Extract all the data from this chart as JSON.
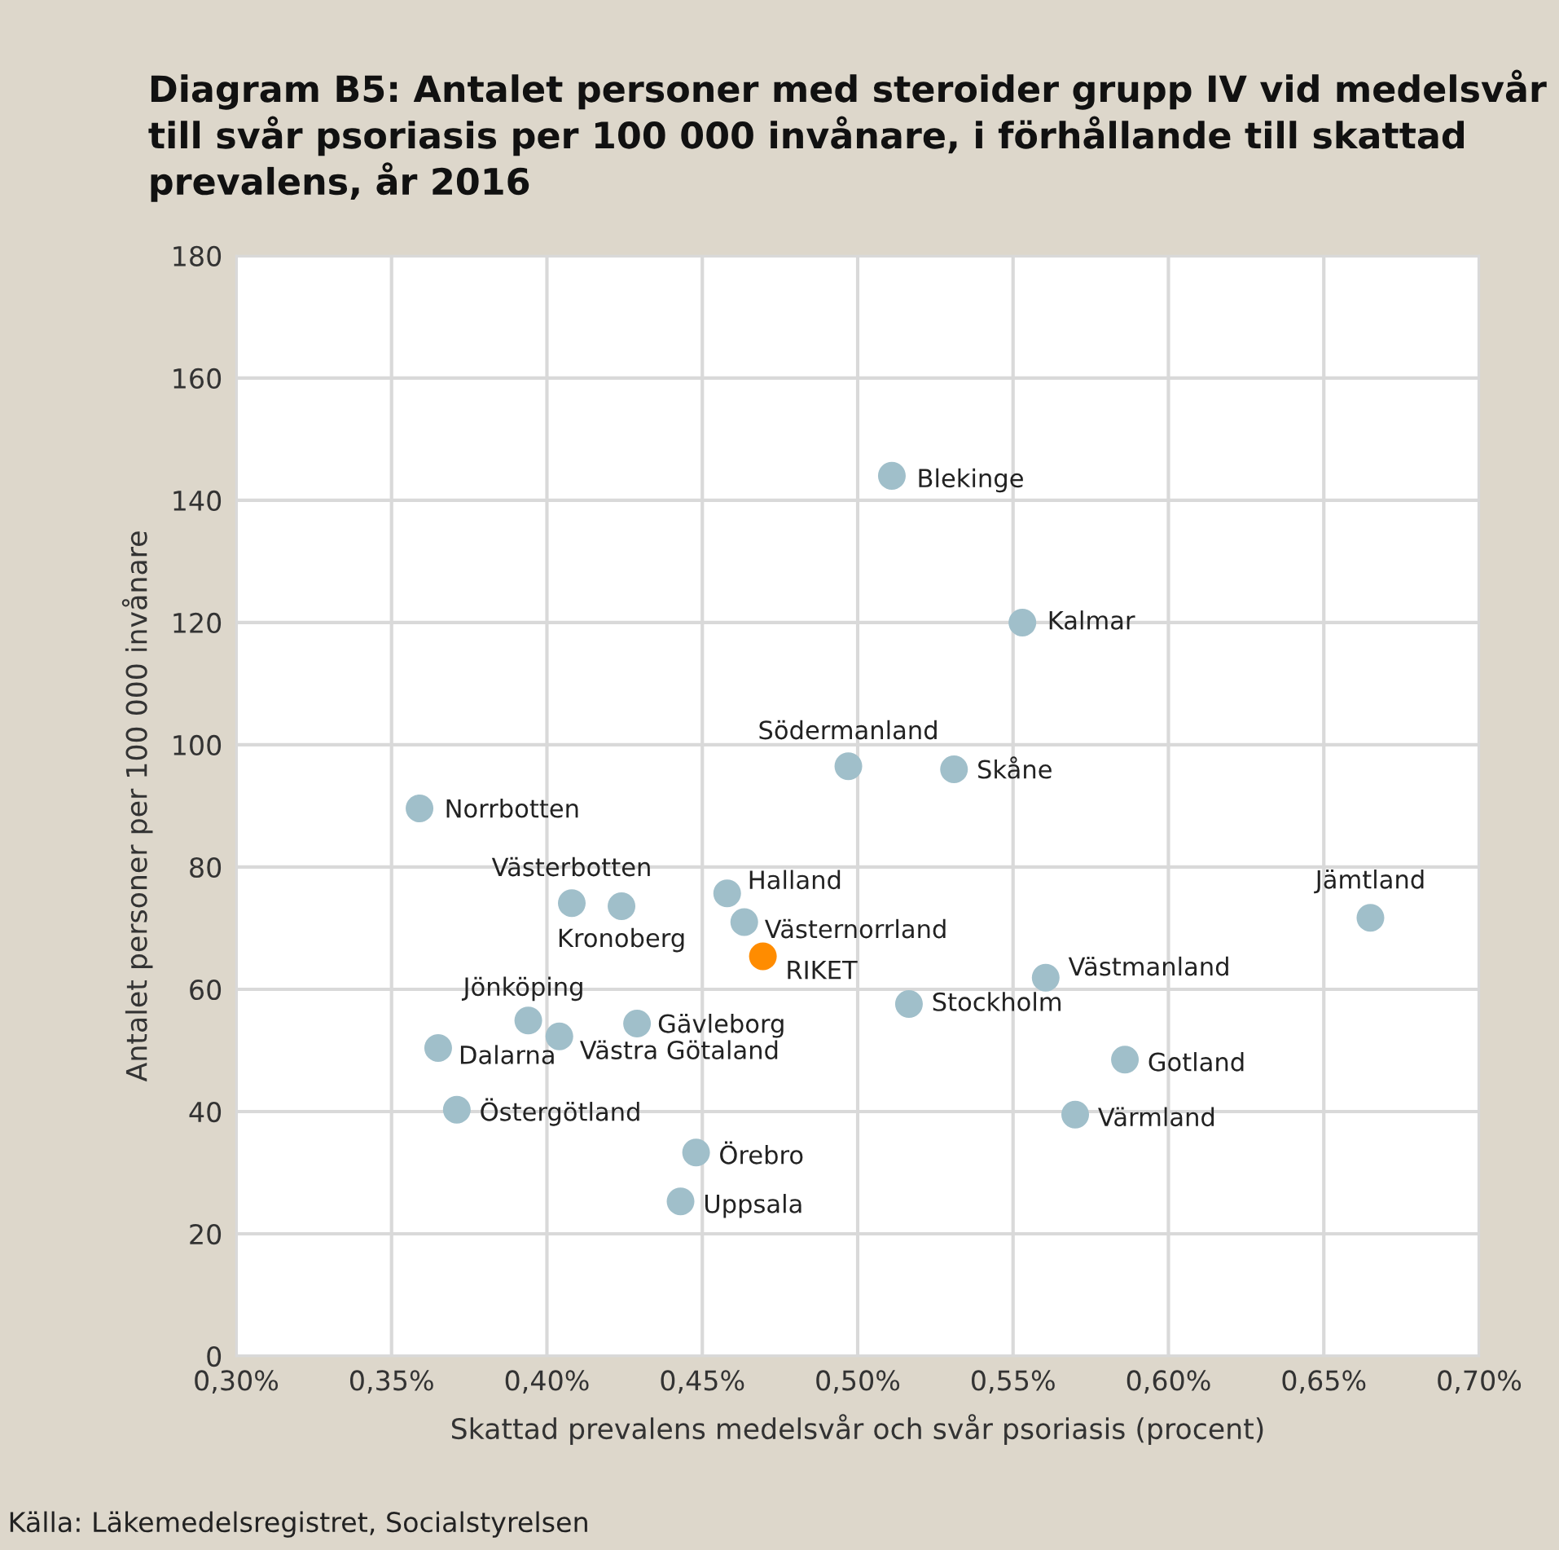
{
  "chart_data": {
    "type": "scatter",
    "title": "Diagram B5: Antalet personer med steroider grupp IV vid medelsvår till svår psoriasis per 100 000 invånare, i förhållande till skattad prevalens, år 2016",
    "xlabel": "Skattad prevalens medelsvår och svår psoriasis (procent)",
    "ylabel": "Antalet personer per 100 000 invånare",
    "annotations": [
      "Källa: Läkemedelsregistret, Socialstyrelsen"
    ],
    "xlim": [
      0.3,
      0.7
    ],
    "xticks": [
      {
        "value": 0.3,
        "label": "0,30%"
      },
      {
        "value": 0.35,
        "label": "0,35%"
      },
      {
        "value": 0.4,
        "label": "0,40%"
      },
      {
        "value": 0.45,
        "label": "0,45%"
      },
      {
        "value": 0.5,
        "label": "0,50%"
      },
      {
        "value": 0.55,
        "label": "0,55%"
      },
      {
        "value": 0.6,
        "label": "0,60%"
      },
      {
        "value": 0.65,
        "label": "0,65%"
      },
      {
        "value": 0.7,
        "label": "0,70%"
      }
    ],
    "ylim": [
      0,
      180
    ],
    "yticks": [
      0,
      20,
      40,
      60,
      80,
      100,
      120,
      140,
      160,
      180
    ],
    "grid": true,
    "marker": "circle",
    "legend": false,
    "series": [
      {
        "name": "Blekinge",
        "color": "#a0bfca",
        "x": [
          0.511
        ],
        "values": [
          144
        ]
      },
      {
        "name": "Kalmar",
        "color": "#a0bfca",
        "x": [
          0.553
        ],
        "values": [
          120
        ]
      },
      {
        "name": "Södermanland",
        "color": "#a0bfca",
        "x": [
          0.497
        ],
        "values": [
          96.5
        ]
      },
      {
        "name": "Skåne",
        "color": "#a0bfca",
        "x": [
          0.531
        ],
        "values": [
          96
        ]
      },
      {
        "name": "Norrbotten",
        "color": "#a0bfca",
        "x": [
          0.359
        ],
        "values": [
          89.6
        ]
      },
      {
        "name": "Västerbotten",
        "color": "#a0bfca",
        "x": [
          0.408
        ],
        "values": [
          74.1
        ]
      },
      {
        "name": "Kronoberg",
        "color": "#a0bfca",
        "x": [
          0.424
        ],
        "values": [
          73.6
        ]
      },
      {
        "name": "Halland",
        "color": "#a0bfca",
        "x": [
          0.458
        ],
        "values": [
          75.7
        ]
      },
      {
        "name": "Västernorrland",
        "color": "#a0bfca",
        "x": [
          0.4635
        ],
        "values": [
          71
        ]
      },
      {
        "name": "Jämtland",
        "color": "#a0bfca",
        "x": [
          0.665
        ],
        "values": [
          71.7
        ]
      },
      {
        "name": "RIKET",
        "color": "#ff8c00",
        "x": [
          0.4695
        ],
        "values": [
          65.4
        ]
      },
      {
        "name": "Västmanland",
        "color": "#a0bfca",
        "x": [
          0.5605
        ],
        "values": [
          61.9
        ]
      },
      {
        "name": "Stockholm",
        "color": "#a0bfca",
        "x": [
          0.5165
        ],
        "values": [
          57.6
        ]
      },
      {
        "name": "Jönköping",
        "color": "#a0bfca",
        "x": [
          0.394
        ],
        "values": [
          54.9
        ]
      },
      {
        "name": "Gävleborg",
        "color": "#a0bfca",
        "x": [
          0.429
        ],
        "values": [
          54.4
        ]
      },
      {
        "name": "Västra Götaland",
        "color": "#a0bfca",
        "x": [
          0.404
        ],
        "values": [
          52.3
        ]
      },
      {
        "name": "Dalarna",
        "color": "#a0bfca",
        "x": [
          0.365
        ],
        "values": [
          50.4
        ]
      },
      {
        "name": "Gotland",
        "color": "#a0bfca",
        "x": [
          0.586
        ],
        "values": [
          48.5
        ]
      },
      {
        "name": "Östergötland",
        "color": "#a0bfca",
        "x": [
          0.371
        ],
        "values": [
          40.3
        ]
      },
      {
        "name": "Värmland",
        "color": "#a0bfca",
        "x": [
          0.57
        ],
        "values": [
          39.5
        ]
      },
      {
        "name": "Örebro",
        "color": "#a0bfca",
        "x": [
          0.448
        ],
        "values": [
          33.3
        ]
      },
      {
        "name": "Uppsala",
        "color": "#a0bfca",
        "x": [
          0.443
        ],
        "values": [
          25.3
        ]
      }
    ]
  }
}
